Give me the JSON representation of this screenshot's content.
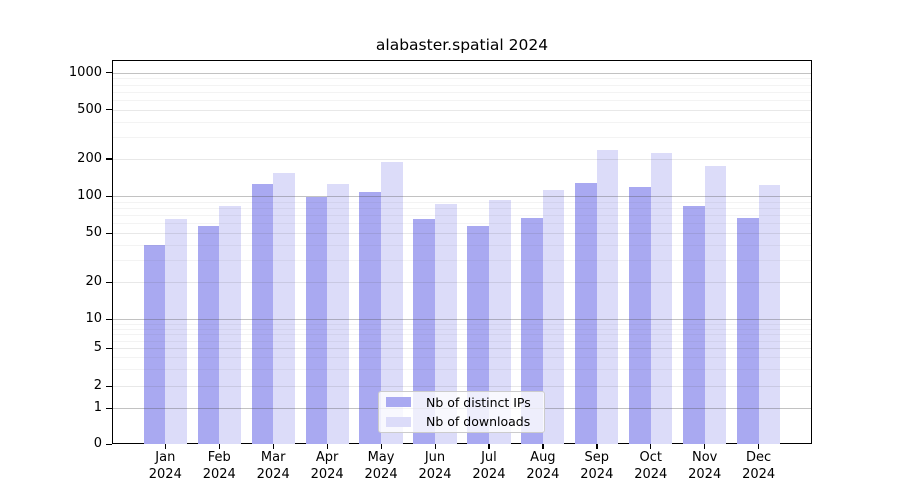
{
  "title": "alabaster.spatial 2024",
  "chart_data": {
    "type": "bar",
    "title": "alabaster.spatial 2024",
    "categories": [
      "Jan 2024",
      "Feb 2024",
      "Mar 2024",
      "Apr 2024",
      "May 2024",
      "Jun 2024",
      "Jul 2024",
      "Aug 2024",
      "Sep 2024",
      "Oct 2024",
      "Nov 2024",
      "Dec 2024"
    ],
    "series": [
      {
        "name": "Nb of distinct IPs",
        "color": "#a9a9f1",
        "values": [
          40,
          57,
          125,
          98,
          108,
          65,
          57,
          66,
          127,
          118,
          83,
          66
        ]
      },
      {
        "name": "Nb of downloads",
        "color": "#dcdcf9",
        "values": [
          65,
          83,
          155,
          125,
          190,
          86,
          93,
          112,
          235,
          225,
          176,
          123
        ]
      }
    ],
    "yscale": "symlog",
    "yticks": [
      0,
      1,
      2,
      5,
      10,
      20,
      50,
      100,
      200,
      500,
      1000
    ],
    "ylim": [
      0,
      1150
    ],
    "grid": true,
    "legend_position": "lower center, inside plot"
  }
}
